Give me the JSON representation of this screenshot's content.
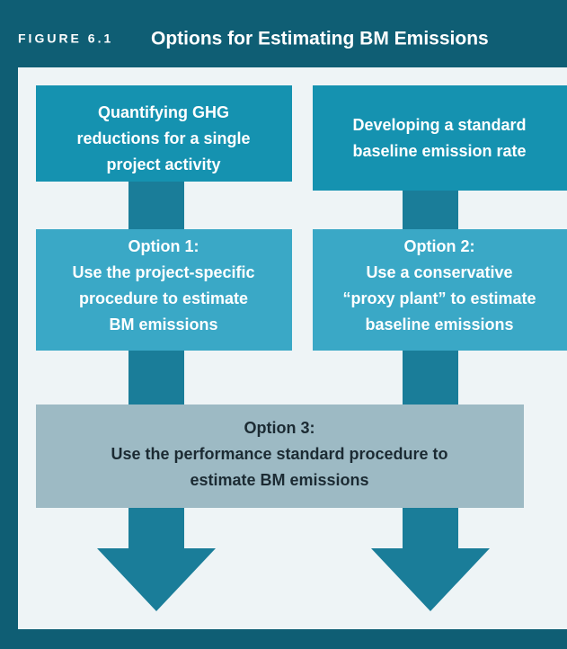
{
  "header": {
    "figure_label": "FIGURE 6.1",
    "title": "Options for Estimating BM Emissions"
  },
  "nodes": [
    {
      "lines": [
        "Quantifying GHG",
        "reductions for a single",
        "project activity"
      ]
    },
    {
      "lines": [
        "Developing a standard",
        "baseline emission rate"
      ]
    },
    {
      "lines": [
        "Option 1:",
        "Use the project-specific",
        "procedure to estimate",
        "BM emissions"
      ]
    },
    {
      "lines": [
        "Option 2:",
        "Use a conservative",
        "“proxy plant” to estimate",
        "baseline emissions"
      ]
    },
    {
      "lines": [
        "Option 3:",
        "Use the performance standard procedure to",
        "estimate BM emissions"
      ]
    }
  ]
}
